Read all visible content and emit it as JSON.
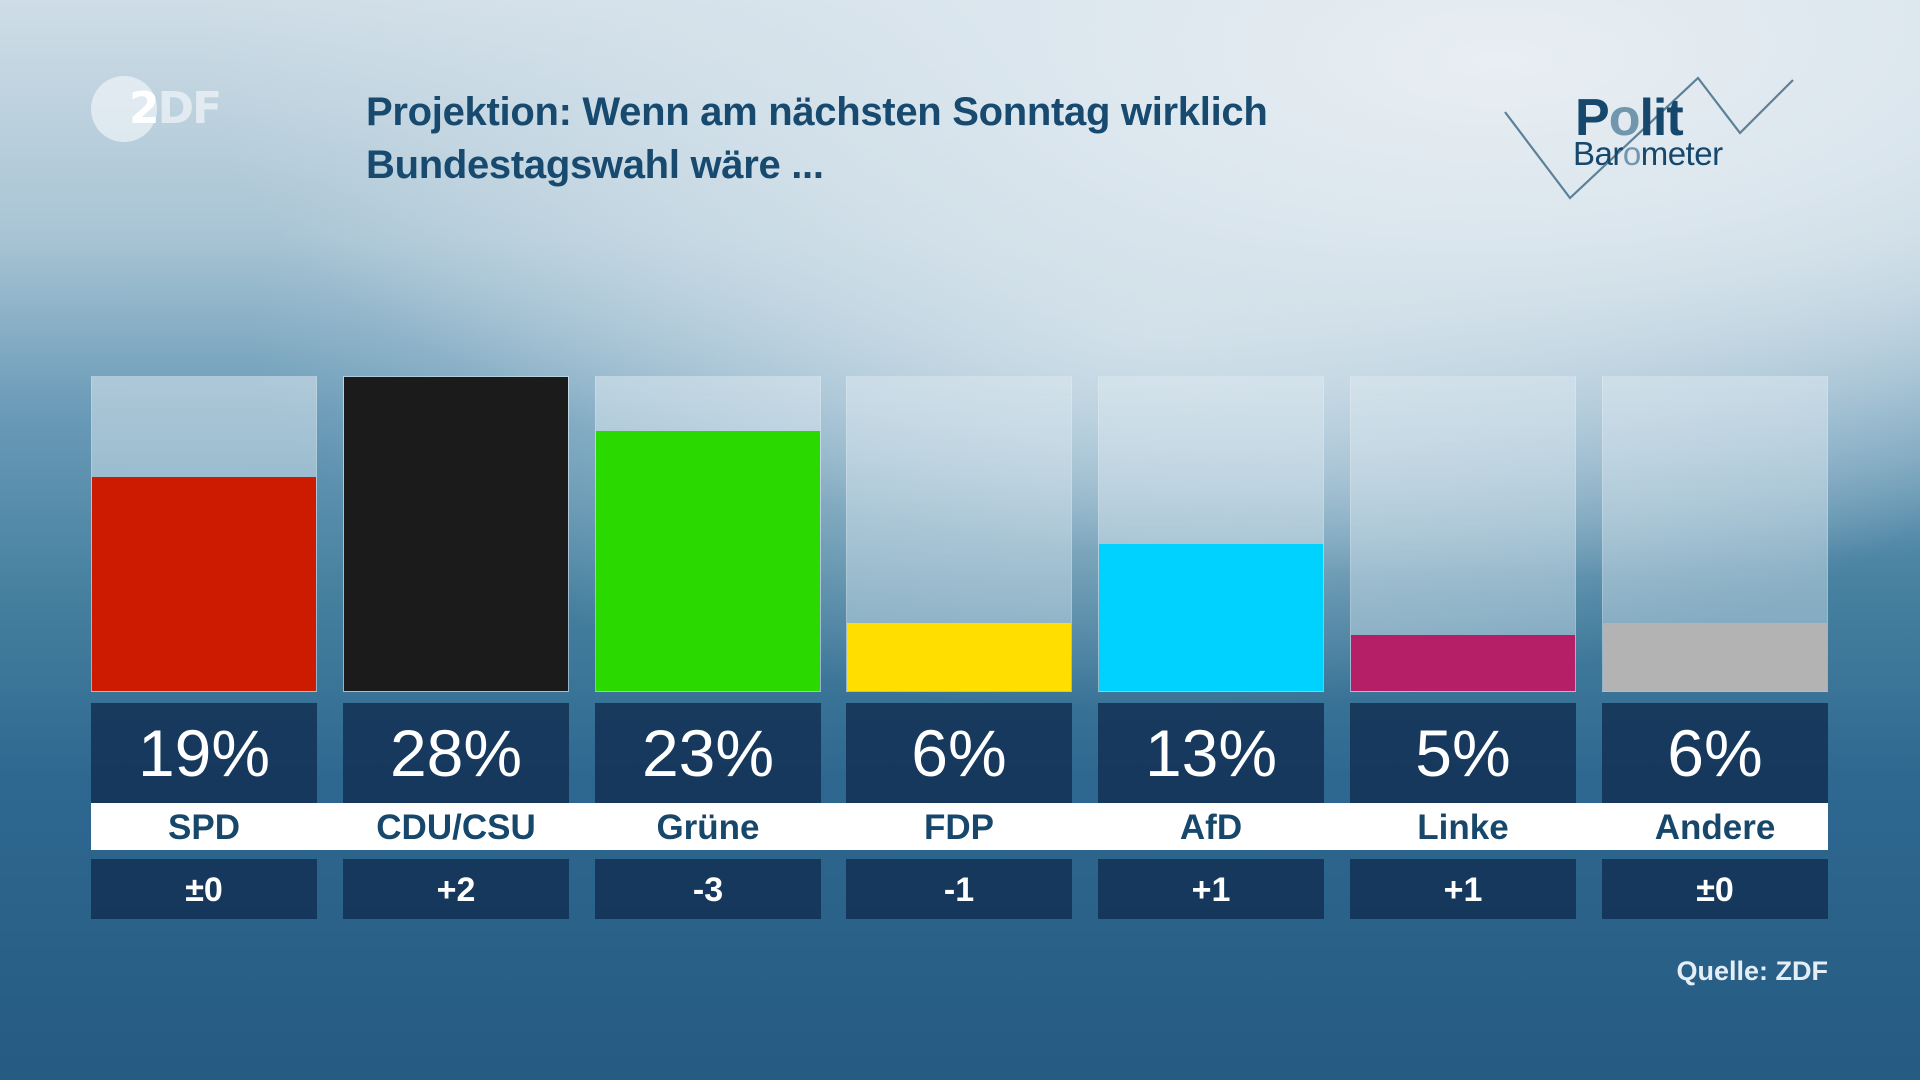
{
  "logo": {
    "zdf_first": "2",
    "zdf_rest": "DF",
    "polit": [
      "P",
      "o",
      "lit"
    ],
    "barometer": [
      "Bar",
      "o",
      "meter"
    ]
  },
  "title": {
    "line1": "Projektion: Wenn am nächsten Sonntag wirklich",
    "line2": "Bundestagswahl wäre ..."
  },
  "source": "Quelle: ZDF",
  "chart_data": {
    "type": "bar",
    "title": "Projektion: Wenn am nächsten Sonntag wirklich Bundestagswahl wäre ...",
    "xlabel": "",
    "ylabel": "",
    "unit": "%",
    "ylim": [
      0,
      28
    ],
    "categories": [
      "SPD",
      "CDU/CSU",
      "Grüne",
      "FDP",
      "AfD",
      "Linke",
      "Andere"
    ],
    "values": [
      19,
      28,
      23,
      6,
      13,
      5,
      6
    ],
    "value_labels": [
      "19%",
      "28%",
      "23%",
      "6%",
      "13%",
      "5%",
      "6%"
    ],
    "changes": [
      "±0",
      "+2",
      "-3",
      "-1",
      "+1",
      "+1",
      "±0"
    ],
    "colors": [
      "#cc1b00",
      "#1b1b1b",
      "#29d900",
      "#ffde00",
      "#00d2ff",
      "#b41f68",
      "#b3b3b3"
    ],
    "grid": false,
    "legend": "none"
  }
}
